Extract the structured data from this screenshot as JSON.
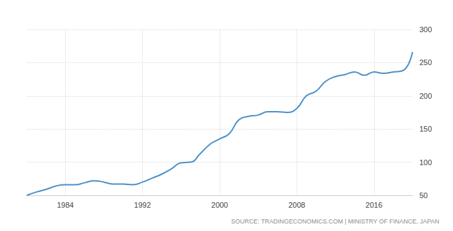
{
  "chart_data": {
    "type": "line",
    "x": [
      1980,
      1981,
      1982,
      1983,
      1984,
      1985,
      1986,
      1987,
      1988,
      1989,
      1990,
      1991,
      1992,
      1993,
      1994,
      1995,
      1996,
      1997,
      1998,
      1999,
      2000,
      2001,
      2002,
      2003,
      2004,
      2005,
      2006,
      2007,
      2008,
      2009,
      2010,
      2011,
      2012,
      2013,
      2014,
      2015,
      2016,
      2017,
      2018,
      2019,
      2020
    ],
    "values": [
      50,
      55,
      59,
      64,
      66,
      66,
      69,
      72,
      70,
      67,
      67,
      66,
      70,
      76,
      82,
      90,
      99,
      100,
      113,
      127,
      135,
      143,
      164,
      169,
      171,
      176,
      176,
      175,
      181,
      200,
      207,
      222,
      229,
      232,
      236,
      231,
      236,
      234,
      236,
      238,
      266
    ],
    "color": "#4c8fc9",
    "xlim": [
      1980,
      2020
    ],
    "xticks": [
      1984,
      1992,
      2000,
      2008,
      2016
    ],
    "ylim": [
      50,
      300
    ],
    "yticks": [
      50,
      100,
      150,
      200,
      250,
      300
    ],
    "grid": true,
    "annotations": [
      "SOURCE: TRADINGECONOMICS.COM | MINISTRY OF FINANCE, JAPAN"
    ]
  }
}
